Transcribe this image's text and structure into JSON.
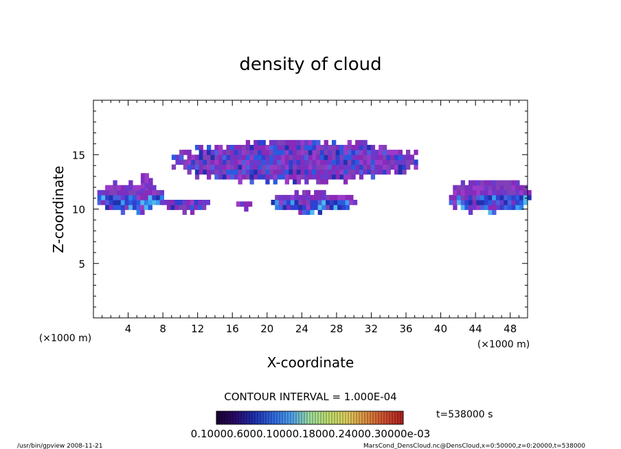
{
  "chart_data": {
    "type": "heatmap",
    "title": "density of cloud",
    "xlabel": "X-coordinate",
    "ylabel": "Z-coordinate",
    "x_unit_label_left": "(×1000 m)",
    "x_unit_label_right": "(×1000 m)",
    "xlim": [
      0,
      50
    ],
    "ylim": [
      0,
      20
    ],
    "x_ticks": [
      4,
      8,
      12,
      16,
      20,
      24,
      28,
      32,
      36,
      40,
      44,
      48
    ],
    "y_ticks": [
      5,
      10,
      15
    ],
    "contour_interval_text": "CONTOUR INTERVAL = 1.000E-04",
    "time_label": "t=538000 s",
    "colorbar_labels_text": "0.10000.6000.10000.18000.24000.30000e-03",
    "colorbar_colors": [
      "#1a0030",
      "#2a0a6a",
      "#1f2fb0",
      "#2f68e0",
      "#4fa0f0",
      "#7fd0e0",
      "#9fe0a0",
      "#c0e070",
      "#e0d060",
      "#e09040",
      "#d05030",
      "#b02020"
    ],
    "cloud_regions": [
      {
        "x": [
          0,
          8
        ],
        "z": [
          9.5,
          12.3
        ],
        "level": "high"
      },
      {
        "x": [
          5,
          6.5
        ],
        "z": [
          11.5,
          13
        ],
        "level": "low"
      },
      {
        "x": [
          8,
          13
        ],
        "z": [
          9.5,
          10.8
        ],
        "level": "mid"
      },
      {
        "x": [
          16,
          18
        ],
        "z": [
          9.8,
          10.5
        ],
        "level": "low"
      },
      {
        "x": [
          20,
          30
        ],
        "z": [
          9.5,
          11.3
        ],
        "level": "high"
      },
      {
        "x": [
          9,
          37
        ],
        "z": [
          12.3,
          16
        ],
        "level": "mid"
      },
      {
        "x": [
          40.5,
          50
        ],
        "z": [
          9.5,
          12.5
        ],
        "level": "high"
      }
    ],
    "footer_left": "/usr/bin/gpview   2008-11-21",
    "footer_right": "MarsCond_DensCloud.nc@DensCloud,x=0:50000,z=0:20000,t=538000"
  }
}
